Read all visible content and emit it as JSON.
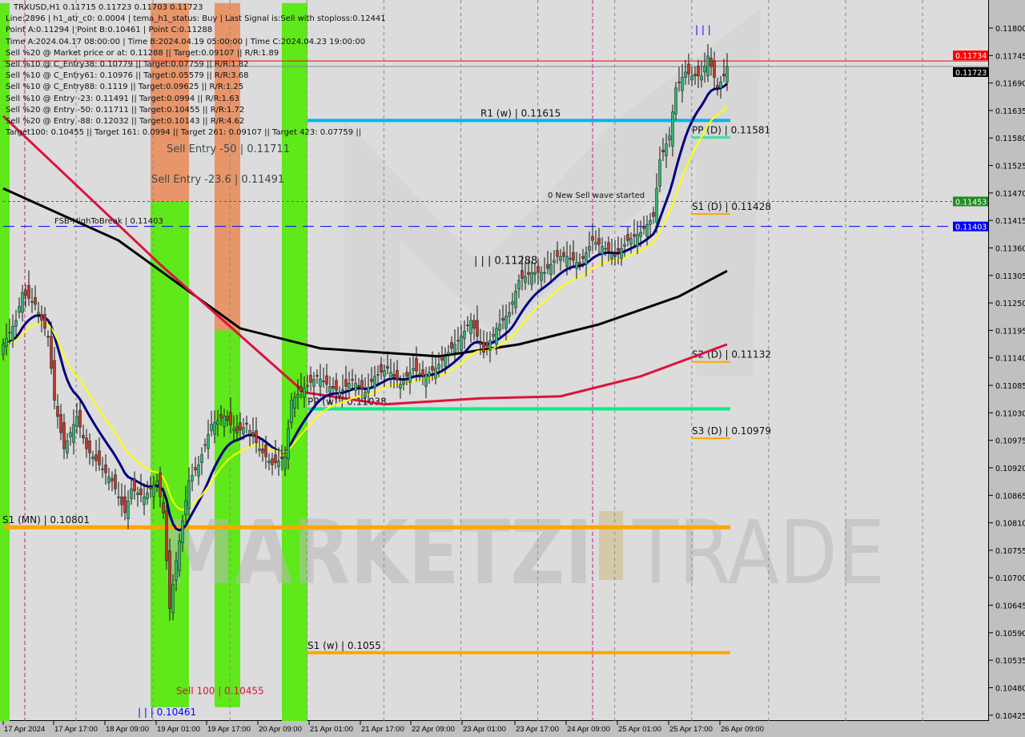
{
  "header": {
    "symbol_line": "TRXUSD,H1  0.11715 0.11723 0.11703 0.11723",
    "lines": [
      "Line:2896 | h1_atr_c0: 0.0004 | tema_h1_status: Buy | Last Signal is:Sell with stoploss:0.12441",
      "Point A:0.11294 | Point B:0.10461 | Point C:0.11288",
      "Time A:2024.04.17 08:00:00 | Time B:2024.04.19 05:00:00 | Time C:2024.04.23 19:00:00",
      "Sell %20 @ Market price or at: 0.11288 || Target:0.09107 || R/R:1.89",
      "Sell %10 @ C_Entry38: 0.10779 || Target:0.07759 || R/R:1.82",
      "Sell %10 @ C_Entry61: 0.10976 || Target:0.05579 || R/R:3.68",
      "Sell %10 @ C_Entry88: 0.1119 || Target:0.09625 || R/R:1.25",
      "Sell %10 @ Entry -23: 0.11491 || Target:0.0994 || R/R:1.63",
      "Sell %20 @ Entry -50: 0.11711 || Target:0.10455 || R/R:1.72",
      "Sell %20 @ Entry -88: 0.12032 || Target:0.10143 || R/R:4.62",
      "Target100: 0.10455 || Target 161: 0.0994 || Target 261: 0.09107 || Target 423: 0.07759 ||"
    ]
  },
  "colors": {
    "background": "#dcdcdc",
    "bull": "#2eb872",
    "bear": "#c0392b",
    "green_zone": "#5fe81a",
    "orange_zone": "#e8956a",
    "ma_fast": "#ffff00",
    "ma_mid": "#000080",
    "ma_red": "#dc143c",
    "ma_black": "#000000",
    "cyan": "#00b4f0",
    "pp": "#00f080",
    "orange": "#ffa500"
  },
  "chart_data": {
    "type": "candlestick",
    "symbol": "TRXUSD",
    "timeframe": "H1",
    "ylim": [
      0.10405,
      0.1185
    ],
    "xlim": [
      "2024-04-17T00:00",
      "2024-04-26T10:00"
    ],
    "y_ticks": [
      "0.11800",
      "0.11745",
      "0.11690",
      "0.11635",
      "0.11580",
      "0.11525",
      "0.11470",
      "0.11415",
      "0.11360",
      "0.11305",
      "0.11250",
      "0.11195",
      "0.11140",
      "0.11085",
      "0.11030",
      "0.10975",
      "0.10920",
      "0.10865",
      "0.10810",
      "0.10755",
      "0.10700",
      "0.10645",
      "0.10590",
      "0.10535",
      "0.10480",
      "0.10425"
    ],
    "x_ticks": [
      {
        "t": "2024-04-17T00:00",
        "label": "17 Apr 2024"
      },
      {
        "t": "2024-04-17T17:00",
        "label": "17 Apr 17:00"
      },
      {
        "t": "2024-04-18T09:00",
        "label": "18 Apr 09:00"
      },
      {
        "t": "2024-04-19T01:00",
        "label": "19 Apr 01:00"
      },
      {
        "t": "2024-04-19T17:00",
        "label": "19 Apr 17:00"
      },
      {
        "t": "2024-04-20T09:00",
        "label": "20 Apr 09:00"
      },
      {
        "t": "2024-04-21T01:00",
        "label": "21 Apr 01:00"
      },
      {
        "t": "2024-04-21T17:00",
        "label": "21 Apr 17:00"
      },
      {
        "t": "2024-04-22T09:00",
        "label": "22 Apr 09:00"
      },
      {
        "t": "2024-04-23T01:00",
        "label": "23 Apr 01:00"
      },
      {
        "t": "2024-04-23T17:00",
        "label": "23 Apr 17:00"
      },
      {
        "t": "2024-04-24T09:00",
        "label": "24 Apr 09:00"
      },
      {
        "t": "2024-04-25T01:00",
        "label": "25 Apr 01:00"
      },
      {
        "t": "2024-04-25T17:00",
        "label": "25 Apr 17:00"
      },
      {
        "t": "2024-04-26T09:00",
        "label": "26 Apr 09:00"
      }
    ],
    "price_badges": [
      {
        "value": "0.11734",
        "color": "#ff0000",
        "text_color": "#ffffff"
      },
      {
        "value": "0.11723",
        "color": "#000000",
        "text_color": "#ffffff"
      },
      {
        "value": "0.11453",
        "color": "#228b22",
        "text_color": "#ffffff"
      },
      {
        "value": "0.11403",
        "color": "#0000ff",
        "text_color": "#ffffff"
      }
    ],
    "close_path": [
      [
        "2024-04-17T00:00",
        0.11167
      ],
      [
        "2024-04-17T04:00",
        0.11215
      ],
      [
        "2024-04-17T06:00",
        0.11271
      ],
      [
        "2024-04-17T10:00",
        0.11247
      ],
      [
        "2024-04-17T14:00",
        0.11183
      ],
      [
        "2024-04-17T16:00",
        0.11055
      ],
      [
        "2024-04-17T19:00",
        0.10958
      ],
      [
        "2024-04-17T23:00",
        0.11023
      ],
      [
        "2024-04-18T02:00",
        0.10958
      ],
      [
        "2024-04-18T06:00",
        0.10926
      ],
      [
        "2024-04-18T10:00",
        0.10894
      ],
      [
        "2024-04-18T14:00",
        0.1083
      ],
      [
        "2024-04-18T16:00",
        0.10878
      ],
      [
        "2024-04-18T20:00",
        0.10862
      ],
      [
        "2024-04-19T00:00",
        0.10894
      ],
      [
        "2024-04-19T02:00",
        0.1083
      ],
      [
        "2024-04-19T04:00",
        0.10638
      ],
      [
        "2024-04-19T06:00",
        0.10734
      ],
      [
        "2024-04-19T10:00",
        0.10894
      ],
      [
        "2024-04-19T13:00",
        0.10926
      ],
      [
        "2024-04-19T17:00",
        0.11007
      ],
      [
        "2024-04-19T21:00",
        0.11023
      ],
      [
        "2024-04-20T01:00",
        0.1099
      ],
      [
        "2024-04-20T04:00",
        0.11007
      ],
      [
        "2024-04-20T08:00",
        0.10958
      ],
      [
        "2024-04-20T12:00",
        0.10926
      ],
      [
        "2024-04-20T16:00",
        0.10942
      ],
      [
        "2024-04-20T18:00",
        0.11055
      ],
      [
        "2024-04-20T22:00",
        0.11079
      ],
      [
        "2024-04-21T02:00",
        0.11103
      ],
      [
        "2024-04-21T05:00",
        0.11087
      ],
      [
        "2024-04-21T09:00",
        0.11071
      ],
      [
        "2024-04-21T13:00",
        0.11095
      ],
      [
        "2024-04-21T17:00",
        0.11071
      ],
      [
        "2024-04-21T20:00",
        0.11103
      ],
      [
        "2024-04-22T00:00",
        0.11119
      ],
      [
        "2024-04-22T04:00",
        0.11087
      ],
      [
        "2024-04-22T08:00",
        0.11119
      ],
      [
        "2024-04-22T11:00",
        0.11103
      ],
      [
        "2024-04-22T15:00",
        0.11119
      ],
      [
        "2024-04-22T19:00",
        0.11151
      ],
      [
        "2024-04-22T23:00",
        0.11183
      ],
      [
        "2024-04-23T02:00",
        0.11215
      ],
      [
        "2024-04-23T06:00",
        0.11151
      ],
      [
        "2024-04-23T10:00",
        0.11199
      ],
      [
        "2024-04-23T14:00",
        0.11231
      ],
      [
        "2024-04-23T17:00",
        0.11295
      ],
      [
        "2024-04-23T21:00",
        0.11311
      ],
      [
        "2024-04-24T01:00",
        0.11311
      ],
      [
        "2024-04-24T05:00",
        0.11343
      ],
      [
        "2024-04-24T08:00",
        0.11343
      ],
      [
        "2024-04-24T12:00",
        0.11327
      ],
      [
        "2024-04-24T16:00",
        0.11375
      ],
      [
        "2024-04-24T20:00",
        0.11359
      ],
      [
        "2024-04-24T23:00",
        0.11343
      ],
      [
        "2024-04-25T03:00",
        0.11375
      ],
      [
        "2024-04-25T07:00",
        0.11391
      ],
      [
        "2024-04-25T11:00",
        0.11423
      ],
      [
        "2024-04-25T13:00",
        0.11536
      ],
      [
        "2024-04-25T16:00",
        0.11584
      ],
      [
        "2024-04-25T18:00",
        0.1168
      ],
      [
        "2024-04-25T21:00",
        0.11712
      ],
      [
        "2024-04-25T23:00",
        0.11704
      ],
      [
        "2024-04-26T02:00",
        0.11704
      ],
      [
        "2024-04-26T04:00",
        0.11744
      ],
      [
        "2024-04-26T07:00",
        0.1168
      ],
      [
        "2024-04-26T09:00",
        0.11704
      ],
      [
        "2024-04-26T10:00",
        0.11723
      ]
    ],
    "ma_red": [
      [
        "2024-04-17T00:00",
        0.11624
      ],
      [
        "2024-04-19T01:00",
        0.11327
      ],
      [
        "2024-04-20T22:00",
        0.11071
      ],
      [
        "2024-04-21T23:00",
        0.11047
      ],
      [
        "2024-04-23T05:00",
        0.11059
      ],
      [
        "2024-04-24T06:00",
        0.11063
      ],
      [
        "2024-04-25T07:00",
        0.11103
      ],
      [
        "2024-04-26T10:00",
        0.11167
      ]
    ],
    "ma_black": [
      [
        "2024-04-17T00:00",
        0.11479
      ],
      [
        "2024-04-18T12:00",
        0.11375
      ],
      [
        "2024-04-20T02:00",
        0.11199
      ],
      [
        "2024-04-21T03:00",
        0.11159
      ],
      [
        "2024-04-22T16:00",
        0.11143
      ],
      [
        "2024-04-23T17:00",
        0.11167
      ],
      [
        "2024-04-24T18:00",
        0.11207
      ],
      [
        "2024-04-25T19:00",
        0.11263
      ],
      [
        "2024-04-26T10:00",
        0.11314
      ]
    ],
    "zones": [
      {
        "color": "green",
        "from": "2024-04-16T23:00",
        "to": "2024-04-17T02:00",
        "top": 0.1185,
        "bottom": 0.104
      },
      {
        "color": "orange",
        "from": "2024-04-18T22:00",
        "to": "2024-04-19T10:00",
        "top": 0.1185,
        "bottom": 0.11453
      },
      {
        "color": "green",
        "from": "2024-04-18T22:00",
        "to": "2024-04-19T10:00",
        "top": 0.11453,
        "bottom": 0.10441
      },
      {
        "color": "orange",
        "from": "2024-04-19T18:00",
        "to": "2024-04-20T02:00",
        "top": 0.1185,
        "bottom": 0.11195
      },
      {
        "color": "green",
        "from": "2024-04-19T18:00",
        "to": "2024-04-20T02:00",
        "top": 0.11195,
        "bottom": 0.10441
      },
      {
        "color": "green",
        "from": "2024-04-20T15:00",
        "to": "2024-04-20T23:00",
        "top": 0.1185,
        "bottom": 0.104
      }
    ],
    "levels": [
      {
        "name": "last-signal-line",
        "value": 0.11734,
        "color": "#ff0000",
        "from": "2024-04-17T00:00",
        "style": "solid",
        "width": 1
      },
      {
        "name": "bid-line",
        "value": 0.11723,
        "color": "#808890",
        "from": "2024-04-17T00:00",
        "style": "solid",
        "width": 1
      },
      {
        "name": "r1-weekly-line",
        "value": 0.11615,
        "color": "#00b4f0",
        "from": "2024-04-20T23:00",
        "to": "2024-04-26T11:00",
        "style": "solid",
        "width": 4,
        "label": "R1 (w) | 0.11615"
      },
      {
        "name": "sell-entry-line",
        "value": 0.11453,
        "color": "#2e7d32",
        "from": "2024-04-17T00:00",
        "style": "dotted",
        "width": 1
      },
      {
        "name": "fsb-high-line",
        "value": 0.11403,
        "color": "#0000ff",
        "from": "2024-04-17T00:00",
        "style": "dashed",
        "width": 1
      },
      {
        "name": "pp-weekly-line",
        "value": 0.11038,
        "color": "#00f080",
        "from": "2024-04-20T23:00",
        "to": "2024-04-26T11:00",
        "style": "solid",
        "width": 4,
        "label": "PP (w) | 0.11038"
      },
      {
        "name": "s1-monthly-line",
        "value": 0.10801,
        "color": "#ffa500",
        "from": "2024-04-17T00:00",
        "to": "2024-04-26T11:00",
        "style": "solid",
        "width": 5,
        "label": "S1 (MN) | 0.10801"
      },
      {
        "name": "s1-weekly-line",
        "value": 0.1055,
        "color": "#ffa500",
        "from": "2024-04-20T23:00",
        "to": "2024-04-26T11:00",
        "style": "solid",
        "width": 4,
        "label": "S1 (w) | 0.1055"
      },
      {
        "name": "pp-daily-line",
        "value": 0.11581,
        "color": "#40e0a0",
        "from": "2024-04-25T23:00",
        "to": "2024-04-26T11:00",
        "style": "solid",
        "width": 3,
        "label": "PP (D) | 0.11581"
      },
      {
        "name": "s1-daily-line",
        "value": 0.11428,
        "color": "#ffa500",
        "from": "2024-04-25T23:00",
        "to": "2024-04-26T11:00",
        "style": "solid",
        "width": 2,
        "label": "S1 (D) | 0.11428"
      },
      {
        "name": "s2-daily-line",
        "value": 0.11132,
        "color": "#ffa500",
        "from": "2024-04-25T23:00",
        "to": "2024-04-26T11:00",
        "style": "solid",
        "width": 2,
        "label": "S2 (D) | 0.11132"
      },
      {
        "name": "s3-daily-line",
        "value": 0.10979,
        "color": "#ffa500",
        "from": "2024-04-25T23:00",
        "to": "2024-04-26T11:00",
        "style": "solid",
        "width": 2,
        "label": "S3 (D) | 0.10979"
      }
    ],
    "annotations": [
      {
        "text": "Sell Entry -50 | 0.11711",
        "t": "2024-04-19T03:00",
        "y": 0.11711,
        "color": "#3a4a4a",
        "size": 13
      },
      {
        "text": "Sell Entry -23.6 | 0.11491",
        "t": "2024-04-19T19:00",
        "y": 0.11491,
        "color": "#3a4a4a",
        "size": 13,
        "anchor": "middle"
      },
      {
        "text": "FSB-HighToBreak | 0.11403",
        "t": "2024-04-17T16:00",
        "y": 0.11409,
        "color": "#111111",
        "size": 10
      },
      {
        "text": "0 New Sell wave started",
        "t": "2024-04-24T02:00",
        "y": 0.1146,
        "color": "#111111",
        "size": 10
      },
      {
        "text": "| | | 0.11288",
        "t": "2024-04-23T03:00",
        "y": 0.11328,
        "color": "#111111",
        "size": 13
      },
      {
        "text": "Sell 100 | 0.10455",
        "t": "2024-04-19T06:00",
        "y": 0.10445,
        "color": "#dc143c",
        "size": 12
      },
      {
        "text": "| | | 0.10461",
        "t": "2024-04-18T18:00",
        "y": 0.10425,
        "color": "#0000ff",
        "size": 12
      },
      {
        "text": "| | |",
        "t": "2024-04-26T00:00",
        "y": 0.1179,
        "color": "#0000ff",
        "size": 12
      }
    ]
  },
  "watermark": {
    "brand_left": "MARKETZI",
    "brand_right": "TRADE"
  }
}
